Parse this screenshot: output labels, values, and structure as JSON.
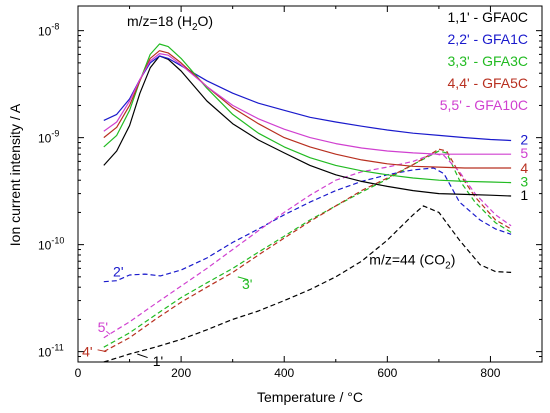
{
  "chart_data": {
    "type": "line",
    "xlabel": "Temperature / °C",
    "ylabel": "Ion current intensity / A",
    "x_ticks": [
      0,
      200,
      400,
      600,
      800
    ],
    "xlim": [
      0,
      900
    ],
    "ylim": [
      8e-12,
      1.7e-08
    ],
    "y_scale": "log",
    "y_ticks": [
      {
        "value": 1e-11,
        "mantissa": "10",
        "exponent": "-11"
      },
      {
        "value": 1e-10,
        "mantissa": "10",
        "exponent": "-10"
      },
      {
        "value": 1e-09,
        "mantissa": "10",
        "exponent": "-9"
      },
      {
        "value": 1e-08,
        "mantissa": "10",
        "exponent": "-8"
      }
    ],
    "annotations": [
      {
        "id": "h2o",
        "base": "m/z=18 (H",
        "sub": "2",
        "tail": "O)",
        "x": 95,
        "y": 1.1e-08
      },
      {
        "id": "co2",
        "base": "m/z=44  (CO",
        "sub": "2",
        "tail": ")",
        "x": 565,
        "y": 6.5e-11
      }
    ],
    "legend": {
      "position": "top-right",
      "entries": [
        {
          "text": "1,1' - GFA0C",
          "color": "#000000"
        },
        {
          "text": "2,2' - GFA1C",
          "color": "#1a1acc"
        },
        {
          "text": "3,3' - GFA3C",
          "color": "#22bb22"
        },
        {
          "text": "4,4' - GFA5C",
          "color": "#b83020"
        },
        {
          "text": "5,5' - GFA10C",
          "color": "#d040d0"
        }
      ]
    },
    "series": [
      {
        "label": "1",
        "color": "#000000",
        "style": "solid",
        "label_x": 858,
        "label_y": 2.9e-10,
        "points": [
          [
            50,
            5.5e-10
          ],
          [
            75,
            7.5e-10
          ],
          [
            100,
            1.3e-09
          ],
          [
            120,
            2.6e-09
          ],
          [
            140,
            4.5e-09
          ],
          [
            158,
            5.8e-09
          ],
          [
            175,
            5.4e-09
          ],
          [
            200,
            4.2e-09
          ],
          [
            250,
            2.2e-09
          ],
          [
            300,
            1.35e-09
          ],
          [
            350,
            9.5e-10
          ],
          [
            400,
            7.2e-10
          ],
          [
            450,
            5.5e-10
          ],
          [
            500,
            4.5e-10
          ],
          [
            550,
            3.9e-10
          ],
          [
            600,
            3.5e-10
          ],
          [
            650,
            3.2e-10
          ],
          [
            700,
            3e-10
          ],
          [
            750,
            2.95e-10
          ],
          [
            800,
            2.9e-10
          ],
          [
            840,
            2.85e-10
          ]
        ]
      },
      {
        "label": "2",
        "color": "#1a1acc",
        "style": "solid",
        "label_x": 858,
        "label_y": 9.6e-10,
        "points": [
          [
            50,
            1.45e-09
          ],
          [
            75,
            1.65e-09
          ],
          [
            100,
            2.3e-09
          ],
          [
            120,
            3.5e-09
          ],
          [
            140,
            5e-09
          ],
          [
            158,
            5.8e-09
          ],
          [
            175,
            5.5e-09
          ],
          [
            200,
            4.7e-09
          ],
          [
            250,
            3.4e-09
          ],
          [
            300,
            2.6e-09
          ],
          [
            350,
            2.1e-09
          ],
          [
            400,
            1.8e-09
          ],
          [
            450,
            1.55e-09
          ],
          [
            500,
            1.4e-09
          ],
          [
            550,
            1.28e-09
          ],
          [
            600,
            1.18e-09
          ],
          [
            650,
            1.1e-09
          ],
          [
            700,
            1.05e-09
          ],
          [
            750,
            1e-09
          ],
          [
            800,
            9.6e-10
          ],
          [
            840,
            9.4e-10
          ]
        ]
      },
      {
        "label": "3",
        "color": "#22bb22",
        "style": "solid",
        "label_x": 858,
        "label_y": 3.9e-10,
        "points": [
          [
            50,
            8.2e-10
          ],
          [
            75,
            1.05e-09
          ],
          [
            100,
            1.8e-09
          ],
          [
            120,
            3.4e-09
          ],
          [
            140,
            6e-09
          ],
          [
            158,
            7.5e-09
          ],
          [
            175,
            7.1e-09
          ],
          [
            200,
            5.5e-09
          ],
          [
            250,
            2.9e-09
          ],
          [
            300,
            1.65e-09
          ],
          [
            350,
            1.1e-09
          ],
          [
            400,
            8.2e-10
          ],
          [
            450,
            6.5e-10
          ],
          [
            500,
            5.5e-10
          ],
          [
            550,
            4.9e-10
          ],
          [
            600,
            4.5e-10
          ],
          [
            650,
            4.2e-10
          ],
          [
            700,
            4e-10
          ],
          [
            750,
            3.9e-10
          ],
          [
            800,
            3.85e-10
          ],
          [
            840,
            3.8e-10
          ]
        ]
      },
      {
        "label": "4",
        "color": "#b83020",
        "style": "solid",
        "label_x": 858,
        "label_y": 5.2e-10,
        "points": [
          [
            50,
            1e-09
          ],
          [
            75,
            1.25e-09
          ],
          [
            100,
            2e-09
          ],
          [
            120,
            3.4e-09
          ],
          [
            140,
            5.5e-09
          ],
          [
            158,
            6.5e-09
          ],
          [
            175,
            6.2e-09
          ],
          [
            200,
            5e-09
          ],
          [
            250,
            3e-09
          ],
          [
            300,
            1.9e-09
          ],
          [
            350,
            1.35e-09
          ],
          [
            400,
            1e-09
          ],
          [
            450,
            8.2e-10
          ],
          [
            500,
            7e-10
          ],
          [
            550,
            6.2e-10
          ],
          [
            600,
            5.7e-10
          ],
          [
            650,
            5.4e-10
          ],
          [
            700,
            5.3e-10
          ],
          [
            750,
            5.2e-10
          ],
          [
            800,
            5.2e-10
          ],
          [
            840,
            5.2e-10
          ]
        ]
      },
      {
        "label": "5",
        "color": "#d040d0",
        "style": "solid",
        "label_x": 858,
        "label_y": 7.2e-10,
        "points": [
          [
            50,
            1.15e-09
          ],
          [
            75,
            1.4e-09
          ],
          [
            100,
            2.2e-09
          ],
          [
            120,
            3.5e-09
          ],
          [
            140,
            5.2e-09
          ],
          [
            158,
            6.1e-09
          ],
          [
            175,
            5.9e-09
          ],
          [
            200,
            4.8e-09
          ],
          [
            250,
            3e-09
          ],
          [
            300,
            2e-09
          ],
          [
            350,
            1.5e-09
          ],
          [
            400,
            1.2e-09
          ],
          [
            450,
            1e-09
          ],
          [
            500,
            8.8e-10
          ],
          [
            550,
            8e-10
          ],
          [
            600,
            7.5e-10
          ],
          [
            650,
            7.2e-10
          ],
          [
            700,
            7e-10
          ],
          [
            750,
            7e-10
          ],
          [
            800,
            7e-10
          ],
          [
            840,
            7e-10
          ]
        ]
      },
      {
        "label": "1'",
        "color": "#000000",
        "style": "dashed",
        "label_x": 145,
        "label_y": 8.2e-12,
        "leader": [
          [
            115,
            9.5e-12
          ],
          [
            135,
            8.8e-12
          ]
        ],
        "points": [
          [
            50,
            8e-12
          ],
          [
            100,
            9.5e-12
          ],
          [
            150,
            1.1e-11
          ],
          [
            200,
            1.3e-11
          ],
          [
            250,
            1.6e-11
          ],
          [
            300,
            2e-11
          ],
          [
            350,
            2.4e-11
          ],
          [
            400,
            3e-11
          ],
          [
            450,
            3.8e-11
          ],
          [
            500,
            5e-11
          ],
          [
            550,
            7e-11
          ],
          [
            600,
            1.1e-10
          ],
          [
            650,
            1.9e-10
          ],
          [
            670,
            2.3e-10
          ],
          [
            700,
            2e-10
          ],
          [
            740,
            1.1e-10
          ],
          [
            780,
            6.5e-11
          ],
          [
            810,
            5.6e-11
          ],
          [
            840,
            5.5e-11
          ]
        ]
      },
      {
        "label": "2'",
        "color": "#1a1acc",
        "style": "dashed",
        "label_x": 68,
        "label_y": 5.6e-11,
        "points": [
          [
            50,
            4.5e-11
          ],
          [
            75,
            4.6e-11
          ],
          [
            100,
            5.2e-11
          ],
          [
            130,
            5.3e-11
          ],
          [
            160,
            5.1e-11
          ],
          [
            200,
            5.8e-11
          ],
          [
            250,
            7.5e-11
          ],
          [
            300,
            1.05e-10
          ],
          [
            350,
            1.4e-10
          ],
          [
            400,
            1.9e-10
          ],
          [
            450,
            2.5e-10
          ],
          [
            500,
            3.2e-10
          ],
          [
            550,
            3.9e-10
          ],
          [
            600,
            4.5e-10
          ],
          [
            650,
            5e-10
          ],
          [
            690,
            5.2e-10
          ],
          [
            710,
            4.6e-10
          ],
          [
            740,
            2.5e-10
          ],
          [
            780,
            1.7e-10
          ],
          [
            810,
            1.4e-10
          ],
          [
            840,
            1.25e-10
          ]
        ]
      },
      {
        "label": "3'",
        "color": "#22bb22",
        "style": "dashed",
        "label_x": 318,
        "label_y": 4.3e-11,
        "leader": [
          [
            310,
            5e-11
          ],
          [
            330,
            4.7e-11
          ]
        ],
        "points": [
          [
            50,
            1.1e-11
          ],
          [
            100,
            1.5e-11
          ],
          [
            150,
            2.2e-11
          ],
          [
            200,
            3.2e-11
          ],
          [
            250,
            4.4e-11
          ],
          [
            300,
            6e-11
          ],
          [
            350,
            8.5e-11
          ],
          [
            400,
            1.2e-10
          ],
          [
            450,
            1.7e-10
          ],
          [
            500,
            2.3e-10
          ],
          [
            550,
            3.1e-10
          ],
          [
            600,
            4.1e-10
          ],
          [
            650,
            5.6e-10
          ],
          [
            700,
            7.5e-10
          ],
          [
            715,
            7.2e-10
          ],
          [
            740,
            4e-10
          ],
          [
            770,
            2.5e-10
          ],
          [
            810,
            1.6e-10
          ],
          [
            840,
            1.3e-10
          ]
        ]
      },
      {
        "label": "4'",
        "color": "#b83020",
        "style": "dashed",
        "label_x": 8,
        "label_y": 1e-11,
        "leader": [
          [
            38,
            1.04e-11
          ],
          [
            55,
            1e-11
          ]
        ],
        "points": [
          [
            50,
            1e-11
          ],
          [
            100,
            1.35e-11
          ],
          [
            150,
            2e-11
          ],
          [
            200,
            2.9e-11
          ],
          [
            250,
            4e-11
          ],
          [
            300,
            5.5e-11
          ],
          [
            350,
            8e-11
          ],
          [
            400,
            1.15e-10
          ],
          [
            450,
            1.65e-10
          ],
          [
            500,
            2.3e-10
          ],
          [
            550,
            3.2e-10
          ],
          [
            600,
            4.2e-10
          ],
          [
            650,
            5.6e-10
          ],
          [
            700,
            7.8e-10
          ],
          [
            715,
            7.5e-10
          ],
          [
            740,
            4.6e-10
          ],
          [
            770,
            2.8e-10
          ],
          [
            810,
            1.7e-10
          ],
          [
            840,
            1.4e-10
          ]
        ]
      },
      {
        "label": "5'",
        "color": "#d040d0",
        "style": "dashed",
        "label_x": 38,
        "label_y": 1.7e-11,
        "leader": [
          [
            55,
            1.55e-11
          ],
          [
            62,
            1.45e-11
          ]
        ],
        "points": [
          [
            50,
            1.35e-11
          ],
          [
            100,
            1.9e-11
          ],
          [
            150,
            2.8e-11
          ],
          [
            200,
            4.1e-11
          ],
          [
            250,
            6e-11
          ],
          [
            300,
            9e-11
          ],
          [
            350,
            1.35e-10
          ],
          [
            400,
            2e-10
          ],
          [
            450,
            2.9e-10
          ],
          [
            500,
            4e-10
          ],
          [
            550,
            4.8e-10
          ],
          [
            600,
            5.3e-10
          ],
          [
            650,
            6e-10
          ],
          [
            690,
            7.1e-10
          ],
          [
            710,
            6.8e-10
          ],
          [
            740,
            4.8e-10
          ],
          [
            770,
            3e-10
          ],
          [
            810,
            1.9e-10
          ],
          [
            840,
            1.5e-10
          ]
        ]
      }
    ]
  }
}
